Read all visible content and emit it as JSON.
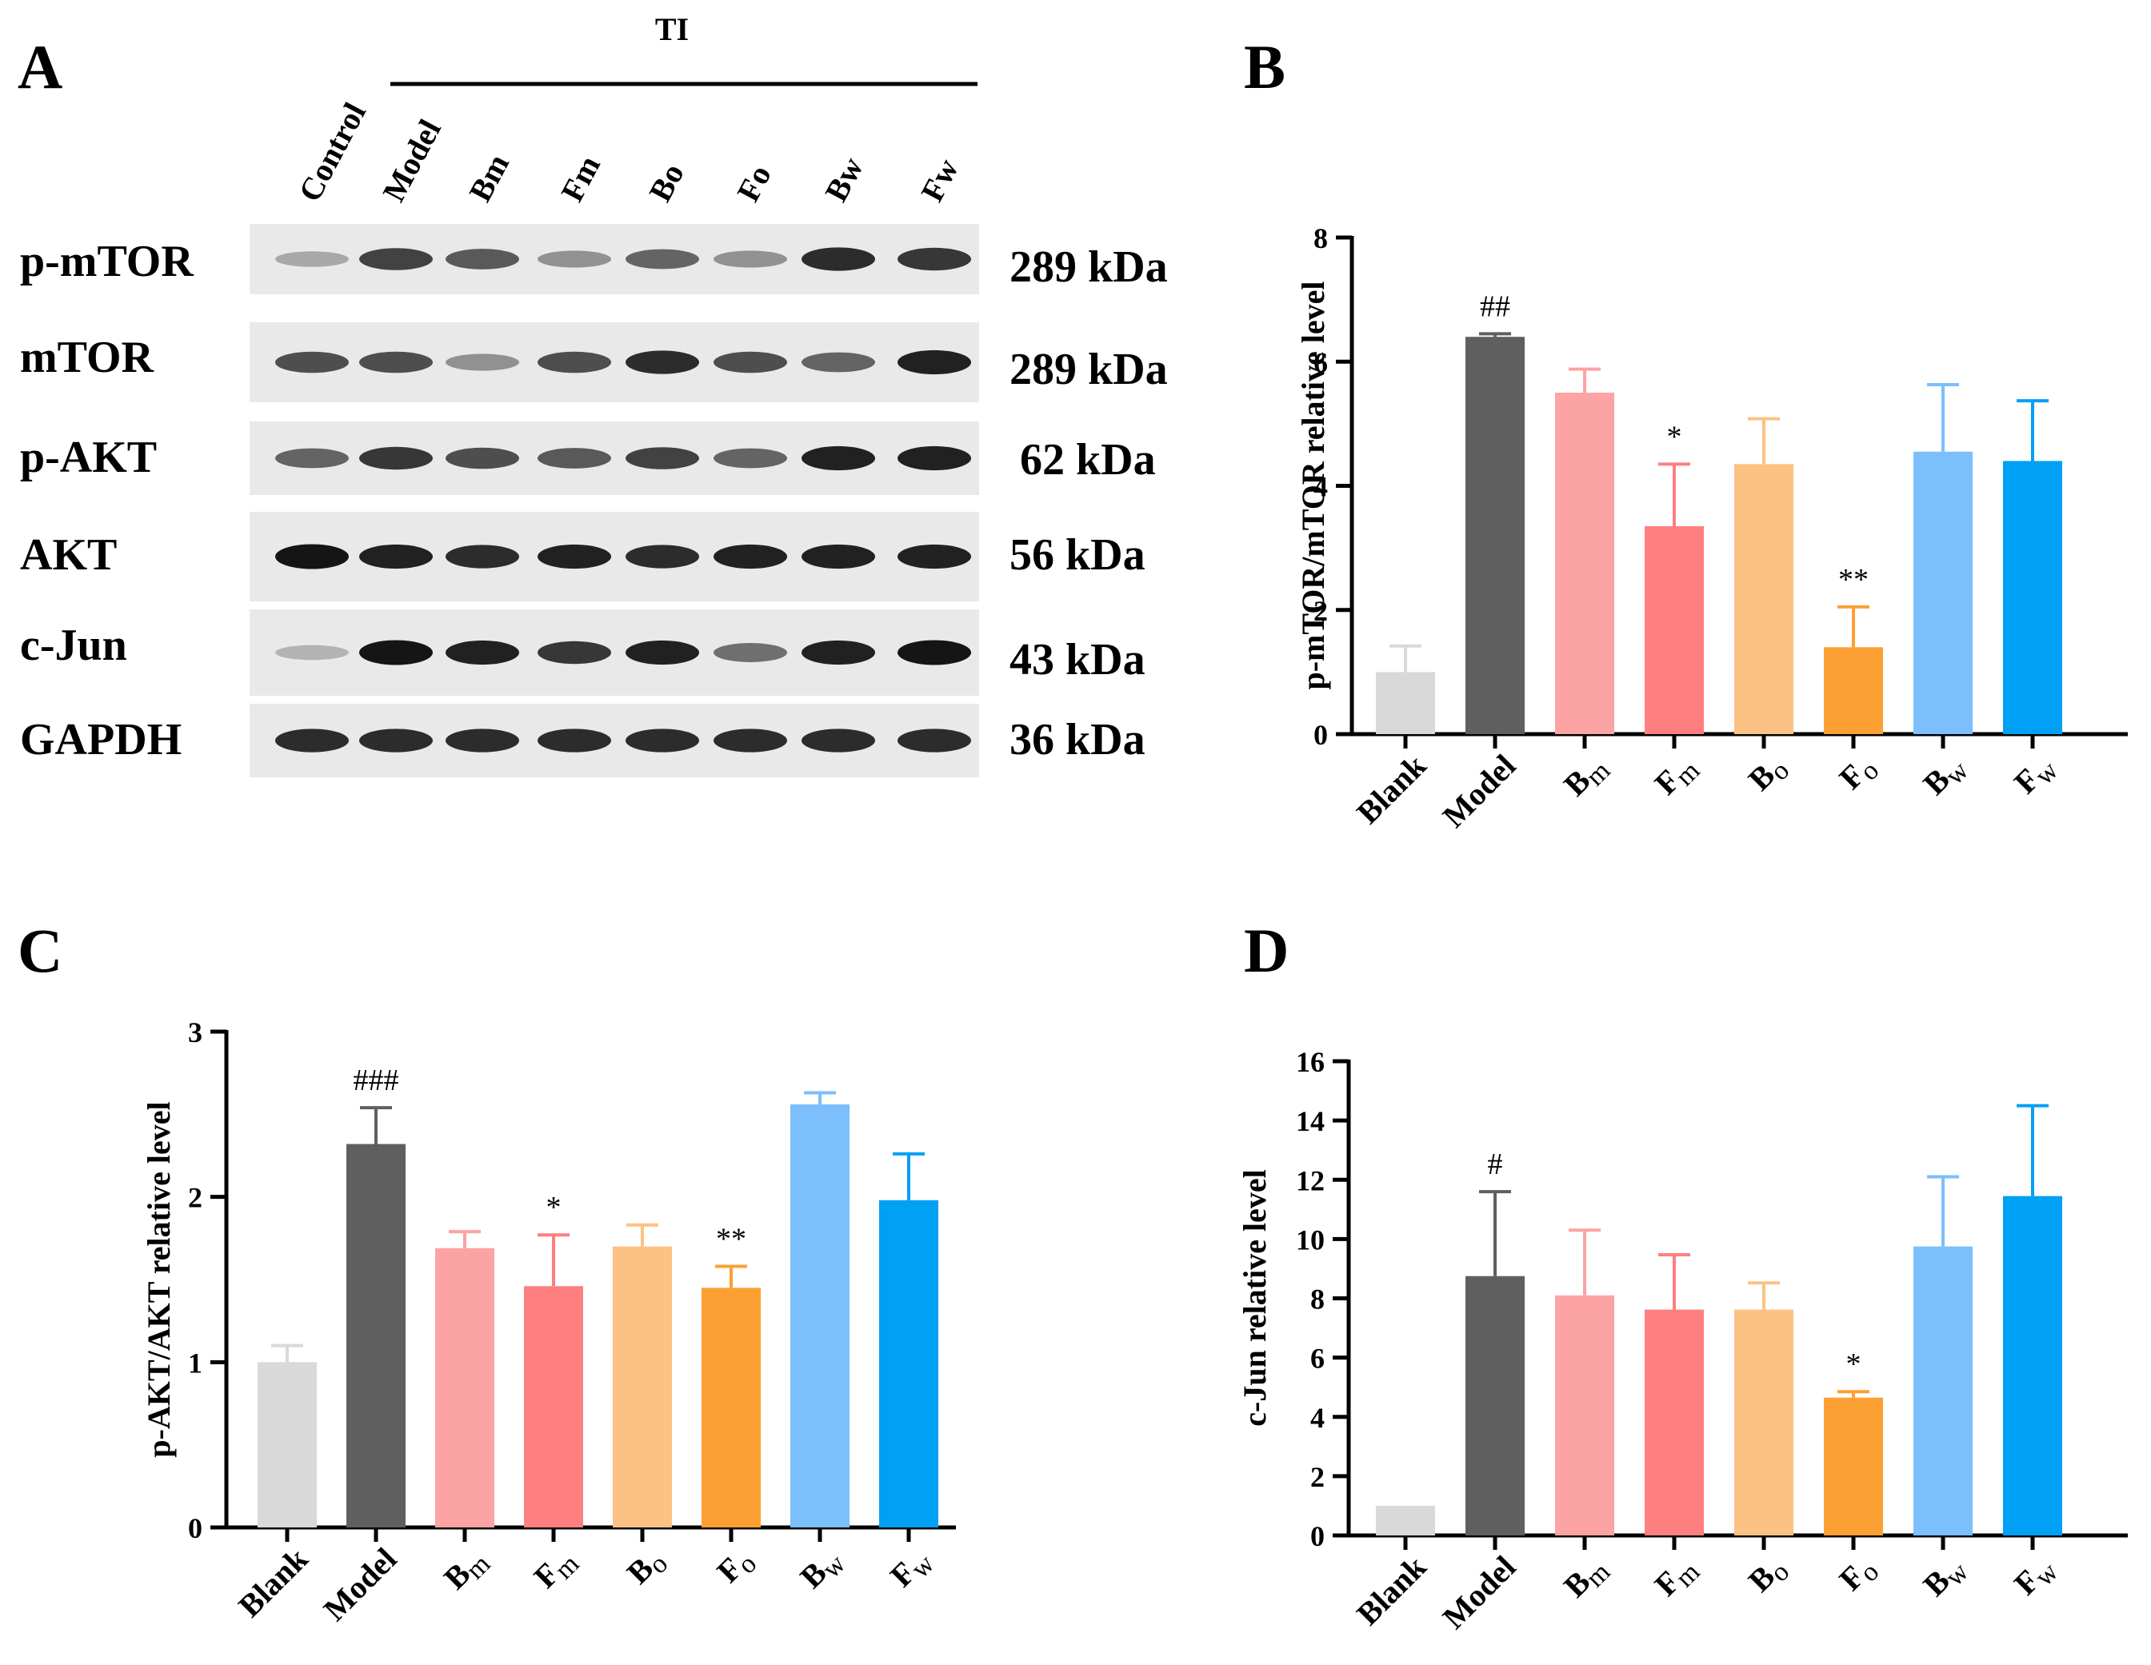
{
  "panel_labels": {
    "a": "A",
    "b": "B",
    "c": "C",
    "d": "D"
  },
  "blot": {
    "group_label": "TI",
    "lanes": [
      "Control",
      "Model",
      "Bm",
      "Fm",
      "Bo",
      "Fo",
      "Bw",
      "Fw"
    ],
    "rows": [
      {
        "protein": "p-mTOR",
        "kda": "289 kDa",
        "intensity": [
          0.3,
          0.75,
          0.65,
          0.4,
          0.6,
          0.4,
          0.85,
          0.8
        ]
      },
      {
        "protein": "mTOR",
        "kda": "289 kDa",
        "intensity": [
          0.7,
          0.7,
          0.4,
          0.7,
          0.85,
          0.7,
          0.6,
          0.9
        ]
      },
      {
        "protein": "p-AKT",
        "kda": "62 kDa",
        "intensity": [
          0.6,
          0.8,
          0.7,
          0.65,
          0.75,
          0.6,
          0.9,
          0.9
        ]
      },
      {
        "protein": "AKT",
        "kda": "56 kDa",
        "intensity": [
          0.95,
          0.9,
          0.85,
          0.9,
          0.85,
          0.9,
          0.9,
          0.9
        ]
      },
      {
        "protein": "c-Jun",
        "kda": "43 kDa",
        "intensity": [
          0.25,
          0.95,
          0.9,
          0.8,
          0.9,
          0.55,
          0.9,
          0.95
        ]
      },
      {
        "protein": "GAPDH",
        "kda": "36 kDa",
        "intensity": [
          0.85,
          0.85,
          0.85,
          0.85,
          0.85,
          0.85,
          0.85,
          0.85
        ]
      }
    ]
  },
  "colors": [
    "#d9d9d9",
    "#5f5f5f",
    "#fca3a3",
    "#fd7f80",
    "#fcc283",
    "#fca033",
    "#7bbffc",
    "#00a0f5"
  ],
  "chart_data": [
    {
      "type": "bar",
      "panel": "B",
      "ylabel": "p-mTOR/mTOR relative level",
      "categories": [
        {
          "main": "Blank",
          "sub": ""
        },
        {
          "main": "Model",
          "sub": ""
        },
        {
          "main": "B",
          "sub": "m"
        },
        {
          "main": "F",
          "sub": "m"
        },
        {
          "main": "B",
          "sub": "o"
        },
        {
          "main": "F",
          "sub": "o"
        },
        {
          "main": "B",
          "sub": "w"
        },
        {
          "main": "F",
          "sub": "w"
        }
      ],
      "values": [
        1.0,
        6.4,
        5.5,
        3.35,
        4.35,
        1.4,
        4.55,
        4.4
      ],
      "errors": [
        0.42,
        0.05,
        0.38,
        1.0,
        0.73,
        0.65,
        1.08,
        0.97
      ],
      "significance": [
        "",
        "##",
        "",
        "*",
        "",
        "**",
        "",
        ""
      ],
      "ylim": [
        0,
        8
      ],
      "yticks": [
        "0",
        "2",
        "4",
        "6",
        "8"
      ]
    },
    {
      "type": "bar",
      "panel": "C",
      "ylabel": "p-AKT/AKT relative level",
      "categories": [
        {
          "main": "Blank",
          "sub": ""
        },
        {
          "main": "Model",
          "sub": ""
        },
        {
          "main": "B",
          "sub": "m"
        },
        {
          "main": "F",
          "sub": "m"
        },
        {
          "main": "B",
          "sub": "o"
        },
        {
          "main": "F",
          "sub": "o"
        },
        {
          "main": "B",
          "sub": "w"
        },
        {
          "main": "F",
          "sub": "w"
        }
      ],
      "values": [
        1.0,
        2.32,
        1.69,
        1.46,
        1.7,
        1.45,
        2.56,
        1.98
      ],
      "errors": [
        0.1,
        0.22,
        0.1,
        0.31,
        0.13,
        0.13,
        0.07,
        0.28
      ],
      "significance": [
        "",
        "###",
        "",
        "*",
        "",
        "**",
        "",
        ""
      ],
      "ylim": [
        0,
        3
      ],
      "yticks": [
        "0",
        "1",
        "2",
        "3"
      ]
    },
    {
      "type": "bar",
      "panel": "D",
      "ylabel": "c-Jun relative level",
      "categories": [
        {
          "main": "Blank",
          "sub": ""
        },
        {
          "main": "Model",
          "sub": ""
        },
        {
          "main": "B",
          "sub": "m"
        },
        {
          "main": "F",
          "sub": "m"
        },
        {
          "main": "B",
          "sub": "o"
        },
        {
          "main": "F",
          "sub": "o"
        },
        {
          "main": "B",
          "sub": "w"
        },
        {
          "main": "F",
          "sub": "w"
        }
      ],
      "values": [
        1.0,
        8.75,
        8.1,
        7.62,
        7.62,
        4.65,
        9.75,
        11.45
      ],
      "errors": [
        0.0,
        2.85,
        2.2,
        1.85,
        0.9,
        0.2,
        2.35,
        3.05
      ],
      "significance": [
        "",
        "#",
        "",
        "",
        "",
        "*",
        "",
        ""
      ],
      "ylim": [
        0,
        16
      ],
      "yticks": [
        "0",
        "2",
        "4",
        "6",
        "8",
        "10",
        "12",
        "14",
        "16"
      ]
    }
  ]
}
